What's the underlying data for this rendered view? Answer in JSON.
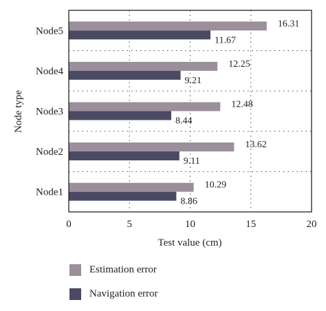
{
  "chart_data": {
    "type": "bar",
    "orientation": "horizontal",
    "categories": [
      "Node1",
      "Node2",
      "Node3",
      "Node4",
      "Node5"
    ],
    "series": [
      {
        "name": "Estimation error",
        "color": "#9b8f9b",
        "values": [
          10.29,
          13.62,
          12.48,
          12.25,
          16.31
        ]
      },
      {
        "name": "Navigation error",
        "color": "#4a4a62",
        "values": [
          8.86,
          9.11,
          8.44,
          9.21,
          11.67
        ]
      }
    ],
    "value_labels": {
      "Estimation error": [
        "10.29",
        "13.62",
        "12.48",
        "12.25",
        "16.31"
      ],
      "Navigation error": [
        "8.86",
        "9.11",
        "8.44",
        "9.21",
        "11.67"
      ]
    },
    "xlabel": "Test value (cm)",
    "ylabel": "Node type",
    "xlim": [
      0,
      20
    ],
    "xticks": [
      "0",
      "5",
      "10",
      "15",
      "20"
    ],
    "grid": "dotted",
    "legend_position": "bottom-left"
  }
}
